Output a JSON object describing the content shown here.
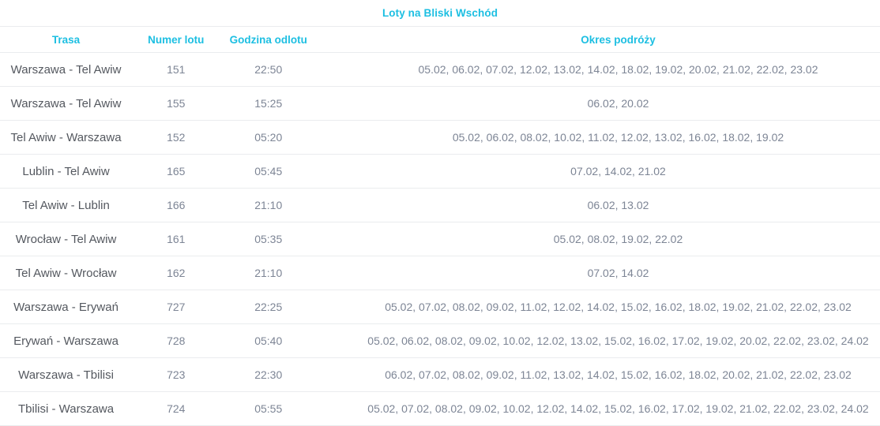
{
  "title": "Loty na Bliski Wschód",
  "colors": {
    "accent": "#1dbfe2",
    "route_text": "#54585f",
    "muted_text": "#7d8595",
    "divider": "#eaecee",
    "background": "#ffffff"
  },
  "table": {
    "columns": [
      "Trasa",
      "Numer lotu",
      "Godzina odlotu",
      "Okres podróży"
    ],
    "rows": [
      {
        "route": "Warszawa - Tel Awiw",
        "flight": "151",
        "time": "22:50",
        "dates": "05.02, 06.02, 07.02, 12.02, 13.02, 14.02, 18.02, 19.02, 20.02, 21.02, 22.02, 23.02"
      },
      {
        "route": "Warszawa - Tel Awiw",
        "flight": "155",
        "time": "15:25",
        "dates": "06.02, 20.02"
      },
      {
        "route": "Tel Awiw - Warszawa",
        "flight": "152",
        "time": "05:20",
        "dates": "05.02, 06.02, 08.02, 10.02, 11.02, 12.02, 13.02, 16.02, 18.02, 19.02"
      },
      {
        "route": "Lublin - Tel Awiw",
        "flight": "165",
        "time": "05:45",
        "dates": "07.02, 14.02, 21.02"
      },
      {
        "route": "Tel Awiw - Lublin",
        "flight": "166",
        "time": "21:10",
        "dates": "06.02, 13.02"
      },
      {
        "route": "Wrocław - Tel Awiw",
        "flight": "161",
        "time": "05:35",
        "dates": "05.02, 08.02, 19.02, 22.02"
      },
      {
        "route": "Tel Awiw - Wrocław",
        "flight": "162",
        "time": "21:10",
        "dates": "07.02, 14.02"
      },
      {
        "route": "Warszawa - Erywań",
        "flight": "727",
        "time": "22:25",
        "dates": "05.02, 07.02, 08.02, 09.02, 11.02, 12.02, 14.02, 15.02, 16.02, 18.02, 19.02, 21.02, 22.02, 23.02"
      },
      {
        "route": "Erywań - Warszawa",
        "flight": "728",
        "time": "05:40",
        "dates": "05.02, 06.02, 08.02, 09.02, 10.02, 12.02, 13.02, 15.02, 16.02, 17.02, 19.02, 20.02, 22.02, 23.02, 24.02"
      },
      {
        "route": "Warszawa - Tbilisi",
        "flight": "723",
        "time": "22:30",
        "dates": "06.02, 07.02, 08.02, 09.02, 11.02, 13.02, 14.02, 15.02, 16.02, 18.02, 20.02, 21.02, 22.02, 23.02"
      },
      {
        "route": "Tbilisi - Warszawa",
        "flight": "724",
        "time": "05:55",
        "dates": "05.02, 07.02, 08.02, 09.02, 10.02, 12.02, 14.02, 15.02, 16.02, 17.02, 19.02, 21.02, 22.02, 23.02, 24.02"
      }
    ]
  }
}
